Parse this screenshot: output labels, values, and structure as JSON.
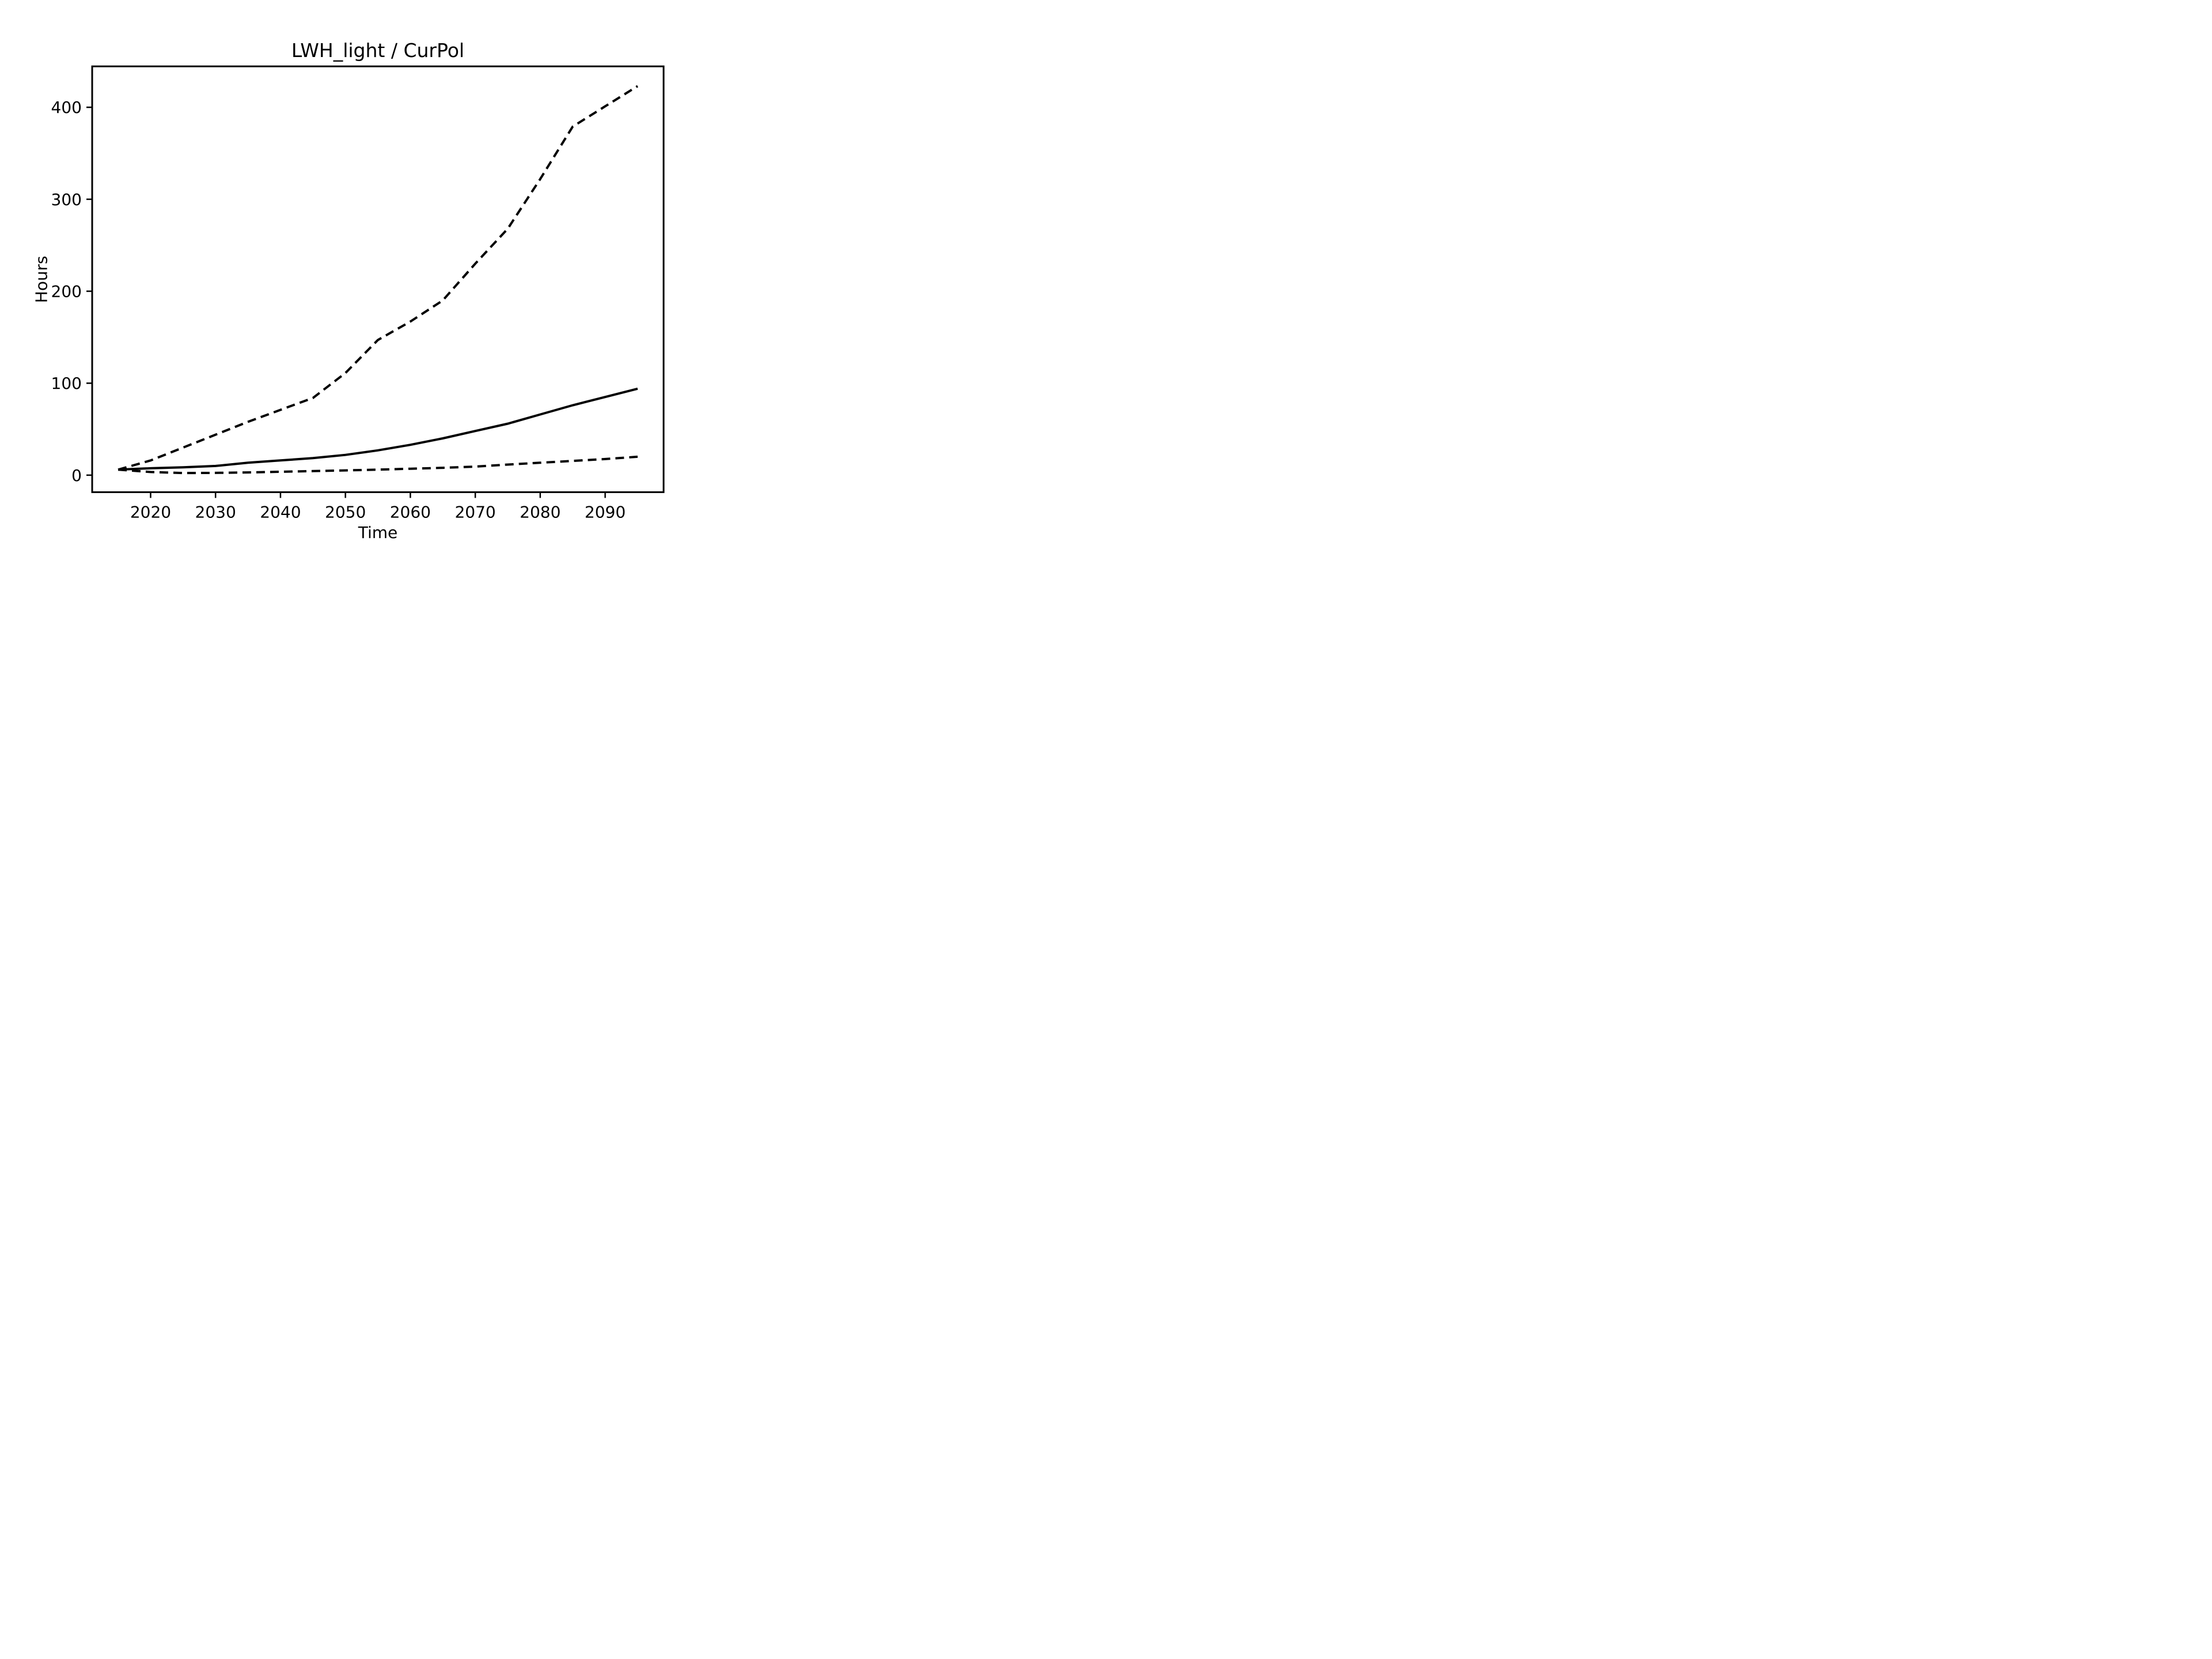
{
  "figure": {
    "background": "#ffffff",
    "line_color": "#000000",
    "text_color": "#000000"
  },
  "chart_data": {
    "type": "line",
    "title": "LWH_light / CurPol",
    "xlabel": "Time",
    "ylabel": "Hours",
    "x": [
      2015,
      2020,
      2025,
      2030,
      2035,
      2040,
      2045,
      2050,
      2055,
      2060,
      2065,
      2070,
      2075,
      2080,
      2085,
      2090,
      2095
    ],
    "series": [
      {
        "name": "upper-dashed",
        "linestyle": "dashed",
        "color": "#000000",
        "values": [
          6,
          16,
          30,
          44,
          58,
          71,
          84,
          111,
          147,
          167,
          190,
          230,
          268,
          322,
          379,
          401,
          423
        ]
      },
      {
        "name": "central-solid",
        "linestyle": "solid",
        "color": "#000000",
        "values": [
          6,
          7.5,
          8.5,
          10,
          13.5,
          16,
          18.5,
          22,
          27,
          33,
          40,
          48,
          56,
          66,
          76,
          85,
          94
        ]
      },
      {
        "name": "lower-dashed",
        "linestyle": "dashed",
        "color": "#000000",
        "values": [
          6,
          3.4,
          2.3,
          2.5,
          3,
          3.7,
          4.4,
          5.2,
          6,
          7,
          8,
          9.3,
          11.5,
          13.5,
          15.5,
          17.5,
          20
        ]
      }
    ],
    "xlim": [
      2011,
      2099
    ],
    "ylim": [
      -18.5,
      444.5
    ],
    "xticks": [
      2020,
      2030,
      2040,
      2050,
      2060,
      2070,
      2080,
      2090
    ],
    "yticks": [
      0,
      100,
      200,
      300,
      400
    ],
    "grid": false,
    "legend": "none"
  }
}
